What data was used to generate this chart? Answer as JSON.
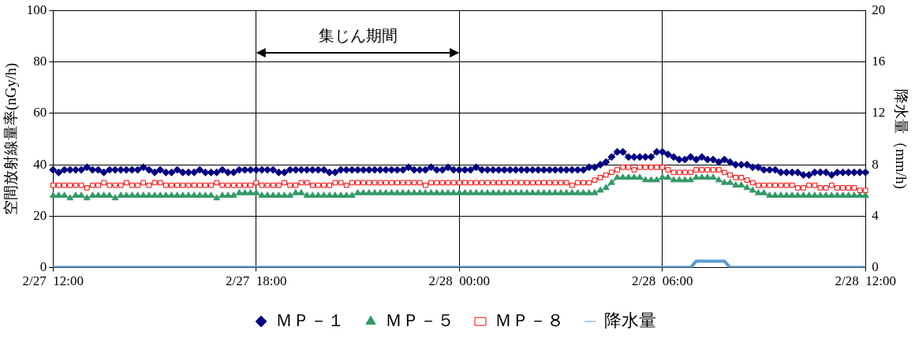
{
  "chart_data": {
    "type": "line",
    "ylabel": "空間放射線量率(nGy/h)",
    "y2label": "降水量（mm/h)",
    "categories": [
      "2/27  12:00",
      null,
      null,
      null,
      null,
      null,
      null,
      null,
      null,
      null,
      null,
      null,
      null,
      null,
      null,
      null,
      null,
      null,
      null,
      null,
      null,
      null,
      null,
      null,
      null,
      null,
      null,
      null,
      null,
      null,
      null,
      null,
      null,
      null,
      null,
      null,
      "2/27  18:00",
      null,
      null,
      null,
      null,
      null,
      null,
      null,
      null,
      null,
      null,
      null,
      null,
      null,
      null,
      null,
      null,
      null,
      null,
      null,
      null,
      null,
      null,
      null,
      null,
      null,
      null,
      null,
      null,
      null,
      null,
      null,
      null,
      null,
      null,
      null,
      "2/28  00:00",
      null,
      null,
      null,
      null,
      null,
      null,
      null,
      null,
      null,
      null,
      null,
      null,
      null,
      null,
      null,
      null,
      null,
      null,
      null,
      null,
      null,
      null,
      null,
      null,
      null,
      null,
      null,
      null,
      null,
      null,
      null,
      null,
      null,
      null,
      null,
      "2/28  06:00",
      null,
      null,
      null,
      null,
      null,
      null,
      null,
      null,
      null,
      null,
      null,
      null,
      null,
      null,
      null,
      null,
      null,
      null,
      null,
      null,
      null,
      null,
      null,
      null,
      null,
      null,
      null,
      null,
      null,
      null,
      null,
      null,
      null,
      null,
      null,
      "2/28  12:00"
    ],
    "ylim": [
      0,
      100
    ],
    "yticks": [
      0,
      20,
      40,
      60,
      80,
      100
    ],
    "y2lim": [
      0,
      20
    ],
    "y2ticks": [
      0,
      4,
      8,
      12,
      16,
      20
    ],
    "grid": true,
    "legend": "bottom",
    "annotations": [
      "集じん期間"
    ],
    "series": [
      {
        "name": "ＭＰ－１",
        "color": "#000080",
        "marker": "diamond",
        "values": [
          38,
          37,
          38,
          38,
          38,
          38,
          39,
          38,
          38,
          37,
          38,
          38,
          38,
          38,
          38,
          38,
          39,
          38,
          37,
          38,
          37,
          37,
          38,
          37,
          37,
          37,
          38,
          37,
          37,
          37,
          38,
          37,
          37,
          38,
          38,
          38,
          38,
          38,
          38,
          38,
          37,
          37,
          38,
          38,
          38,
          38,
          38,
          38,
          38,
          37,
          37,
          38,
          38,
          38,
          38,
          38,
          38,
          38,
          38,
          38,
          38,
          38,
          38,
          39,
          38,
          38,
          38,
          39,
          38,
          38,
          39,
          38,
          38,
          38,
          38,
          39,
          38,
          38,
          38,
          38,
          38,
          38,
          38,
          38,
          38,
          38,
          38,
          38,
          38,
          38,
          38,
          38,
          38,
          38,
          38,
          39,
          39,
          40,
          41,
          43,
          45,
          45,
          43,
          43,
          43,
          43,
          43,
          45,
          45,
          44,
          43,
          42,
          42,
          43,
          42,
          43,
          42,
          42,
          41,
          42,
          41,
          40,
          40,
          40,
          39,
          39,
          38,
          38,
          38,
          37,
          37,
          37,
          37,
          36,
          36,
          37,
          37,
          37,
          36,
          37,
          37,
          37,
          37,
          37,
          37
        ]
      },
      {
        "name": "ＭＰ－５",
        "color": "#339966",
        "marker": "triangle",
        "values": [
          28,
          28,
          28,
          27,
          28,
          28,
          27,
          28,
          28,
          28,
          28,
          27,
          28,
          28,
          28,
          28,
          28,
          28,
          28,
          28,
          28,
          28,
          28,
          28,
          28,
          28,
          28,
          28,
          28,
          27,
          28,
          28,
          28,
          29,
          29,
          29,
          29,
          28,
          28,
          28,
          28,
          28,
          28,
          29,
          29,
          28,
          28,
          28,
          28,
          28,
          28,
          28,
          28,
          28,
          29,
          29,
          29,
          29,
          29,
          29,
          29,
          29,
          29,
          29,
          29,
          29,
          29,
          29,
          29,
          29,
          29,
          29,
          29,
          29,
          29,
          29,
          29,
          29,
          29,
          29,
          29,
          29,
          29,
          29,
          29,
          29,
          29,
          29,
          29,
          29,
          29,
          29,
          29,
          29,
          29,
          29,
          29,
          30,
          31,
          33,
          35,
          35,
          35,
          35,
          35,
          34,
          34,
          34,
          35,
          35,
          34,
          34,
          34,
          34,
          35,
          35,
          35,
          35,
          34,
          33,
          33,
          32,
          32,
          31,
          30,
          29,
          29,
          28,
          28,
          28,
          28,
          28,
          28,
          28,
          28,
          28,
          28,
          28,
          28,
          28,
          28,
          28,
          28,
          28,
          28
        ]
      },
      {
        "name": "ＭＰ－８",
        "color": "#ff0000",
        "marker": "square",
        "values": [
          32,
          32,
          32,
          32,
          32,
          32,
          31,
          32,
          32,
          33,
          32,
          32,
          32,
          33,
          32,
          32,
          33,
          32,
          33,
          33,
          32,
          32,
          32,
          32,
          32,
          32,
          32,
          32,
          32,
          33,
          32,
          32,
          32,
          32,
          32,
          32,
          33,
          32,
          32,
          32,
          32,
          33,
          32,
          32,
          33,
          33,
          32,
          32,
          32,
          32,
          33,
          33,
          32,
          33,
          33,
          33,
          33,
          33,
          33,
          33,
          33,
          33,
          33,
          33,
          33,
          33,
          32,
          33,
          33,
          33,
          33,
          33,
          33,
          33,
          33,
          33,
          33,
          33,
          33,
          33,
          33,
          33,
          33,
          33,
          33,
          33,
          33,
          33,
          33,
          33,
          33,
          33,
          32,
          33,
          33,
          33,
          34,
          35,
          36,
          37,
          38,
          39,
          39,
          38,
          39,
          39,
          39,
          39,
          39,
          38,
          37,
          37,
          37,
          37,
          38,
          38,
          38,
          38,
          38,
          37,
          36,
          35,
          35,
          34,
          33,
          32,
          32,
          32,
          32,
          32,
          32,
          32,
          31,
          31,
          32,
          32,
          31,
          31,
          32,
          31,
          31,
          31,
          31,
          30,
          30
        ]
      },
      {
        "name": "降水量",
        "color": "#5b9bd5",
        "marker": "none",
        "axis": "y2",
        "values": [
          0,
          0,
          0,
          0,
          0,
          0,
          0,
          0,
          0,
          0,
          0,
          0,
          0,
          0,
          0,
          0,
          0,
          0,
          0,
          0,
          0,
          0,
          0,
          0,
          0,
          0,
          0,
          0,
          0,
          0,
          0,
          0,
          0,
          0,
          0,
          0,
          0,
          0,
          0,
          0,
          0,
          0,
          0,
          0,
          0,
          0,
          0,
          0,
          0,
          0,
          0,
          0,
          0,
          0,
          0,
          0,
          0,
          0,
          0,
          0,
          0,
          0,
          0,
          0,
          0,
          0,
          0,
          0,
          0,
          0,
          0,
          0,
          0,
          0,
          0,
          0,
          0,
          0,
          0,
          0,
          0,
          0,
          0,
          0,
          0,
          0,
          0,
          0,
          0,
          0,
          0,
          0,
          0,
          0,
          0,
          0,
          0,
          0,
          0,
          0,
          0,
          0,
          0,
          0,
          0,
          0,
          0,
          0,
          0,
          0,
          0,
          0,
          0,
          0,
          0.5,
          0.5,
          0.5,
          0.5,
          0.5,
          0.5,
          0,
          0,
          0,
          0,
          0,
          0,
          0,
          0,
          0,
          0,
          0,
          0,
          0,
          0,
          0,
          0,
          0,
          0,
          0,
          0,
          0,
          0,
          0,
          0,
          0
        ]
      }
    ]
  }
}
